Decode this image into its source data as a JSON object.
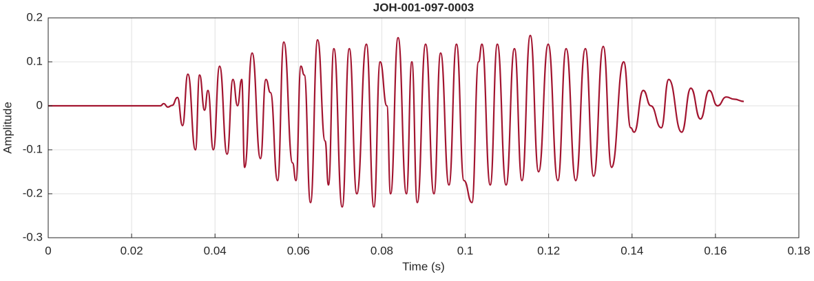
{
  "chart_data": {
    "type": "line",
    "title": "JOH-001-097-0003",
    "x_label": "Time (s)",
    "y_label": "Amplitude",
    "grid": true,
    "xlim": [
      0,
      0.18
    ],
    "xticks": [
      0,
      0.02,
      0.04,
      0.06,
      0.08,
      0.1,
      0.12,
      0.14,
      0.16,
      0.18
    ],
    "ylim": [
      -0.3,
      0.2
    ],
    "yticks": [
      -0.3,
      -0.2,
      -0.1,
      0,
      0.1,
      0.2
    ],
    "series": [
      {
        "color": "#a2142f",
        "x": [
          0,
          0.0269,
          0.0277,
          0.0287,
          0.0297,
          0.031,
          0.0322,
          0.0335,
          0.0353,
          0.0363,
          0.0375,
          0.0383,
          0.0396,
          0.0411,
          0.0429,
          0.0443,
          0.0454,
          0.0464,
          0.0471,
          0.0489,
          0.0509,
          0.0522,
          0.0533,
          0.055,
          0.0565,
          0.0586,
          0.0594,
          0.0606,
          0.0614,
          0.0629,
          0.0646,
          0.0664,
          0.0672,
          0.0685,
          0.0705,
          0.0722,
          0.074,
          0.0763,
          0.0781,
          0.0796,
          0.0812,
          0.0821,
          0.0839,
          0.0859,
          0.0872,
          0.0885,
          0.0905,
          0.0925,
          0.0941,
          0.0961,
          0.0979,
          0.0997,
          0.1016,
          0.1032,
          0.104,
          0.106,
          0.1077,
          0.1098,
          0.1118,
          0.1136,
          0.1156,
          0.1176,
          0.1199,
          0.1222,
          0.1242,
          0.1265,
          0.1288,
          0.1308,
          0.1331,
          0.1351,
          0.138,
          0.1397,
          0.1405,
          0.1427,
          0.1445,
          0.147,
          0.1488,
          0.1519,
          0.1541,
          0.1564,
          0.1585,
          0.1605,
          0.1626,
          0.1645,
          0.1668
        ],
        "values": [
          0,
          0,
          0.005,
          -0.003,
          0.001,
          0.019,
          -0.045,
          0.072,
          -0.1,
          0.07,
          -0.01,
          0.035,
          -0.1,
          0.09,
          -0.11,
          0.06,
          0.0,
          0.06,
          -0.14,
          0.12,
          -0.12,
          0.06,
          0.03,
          -0.17,
          0.145,
          -0.13,
          -0.17,
          0.09,
          0.07,
          -0.22,
          0.15,
          -0.08,
          -0.18,
          0.13,
          -0.23,
          0.13,
          -0.2,
          0.14,
          -0.23,
          0.1,
          0.0,
          -0.2,
          0.155,
          -0.2,
          0.1,
          -0.22,
          0.14,
          -0.2,
          0.12,
          -0.18,
          0.14,
          -0.17,
          -0.22,
          0.1,
          0.14,
          -0.18,
          0.14,
          -0.18,
          0.13,
          -0.17,
          0.16,
          -0.15,
          0.14,
          -0.17,
          0.13,
          -0.17,
          0.13,
          -0.16,
          0.135,
          -0.14,
          0.1,
          -0.05,
          -0.06,
          0.035,
          0.0,
          -0.05,
          0.06,
          -0.06,
          0.04,
          -0.03,
          0.035,
          0.0,
          0.02,
          0.015,
          0.01
        ]
      }
    ]
  }
}
